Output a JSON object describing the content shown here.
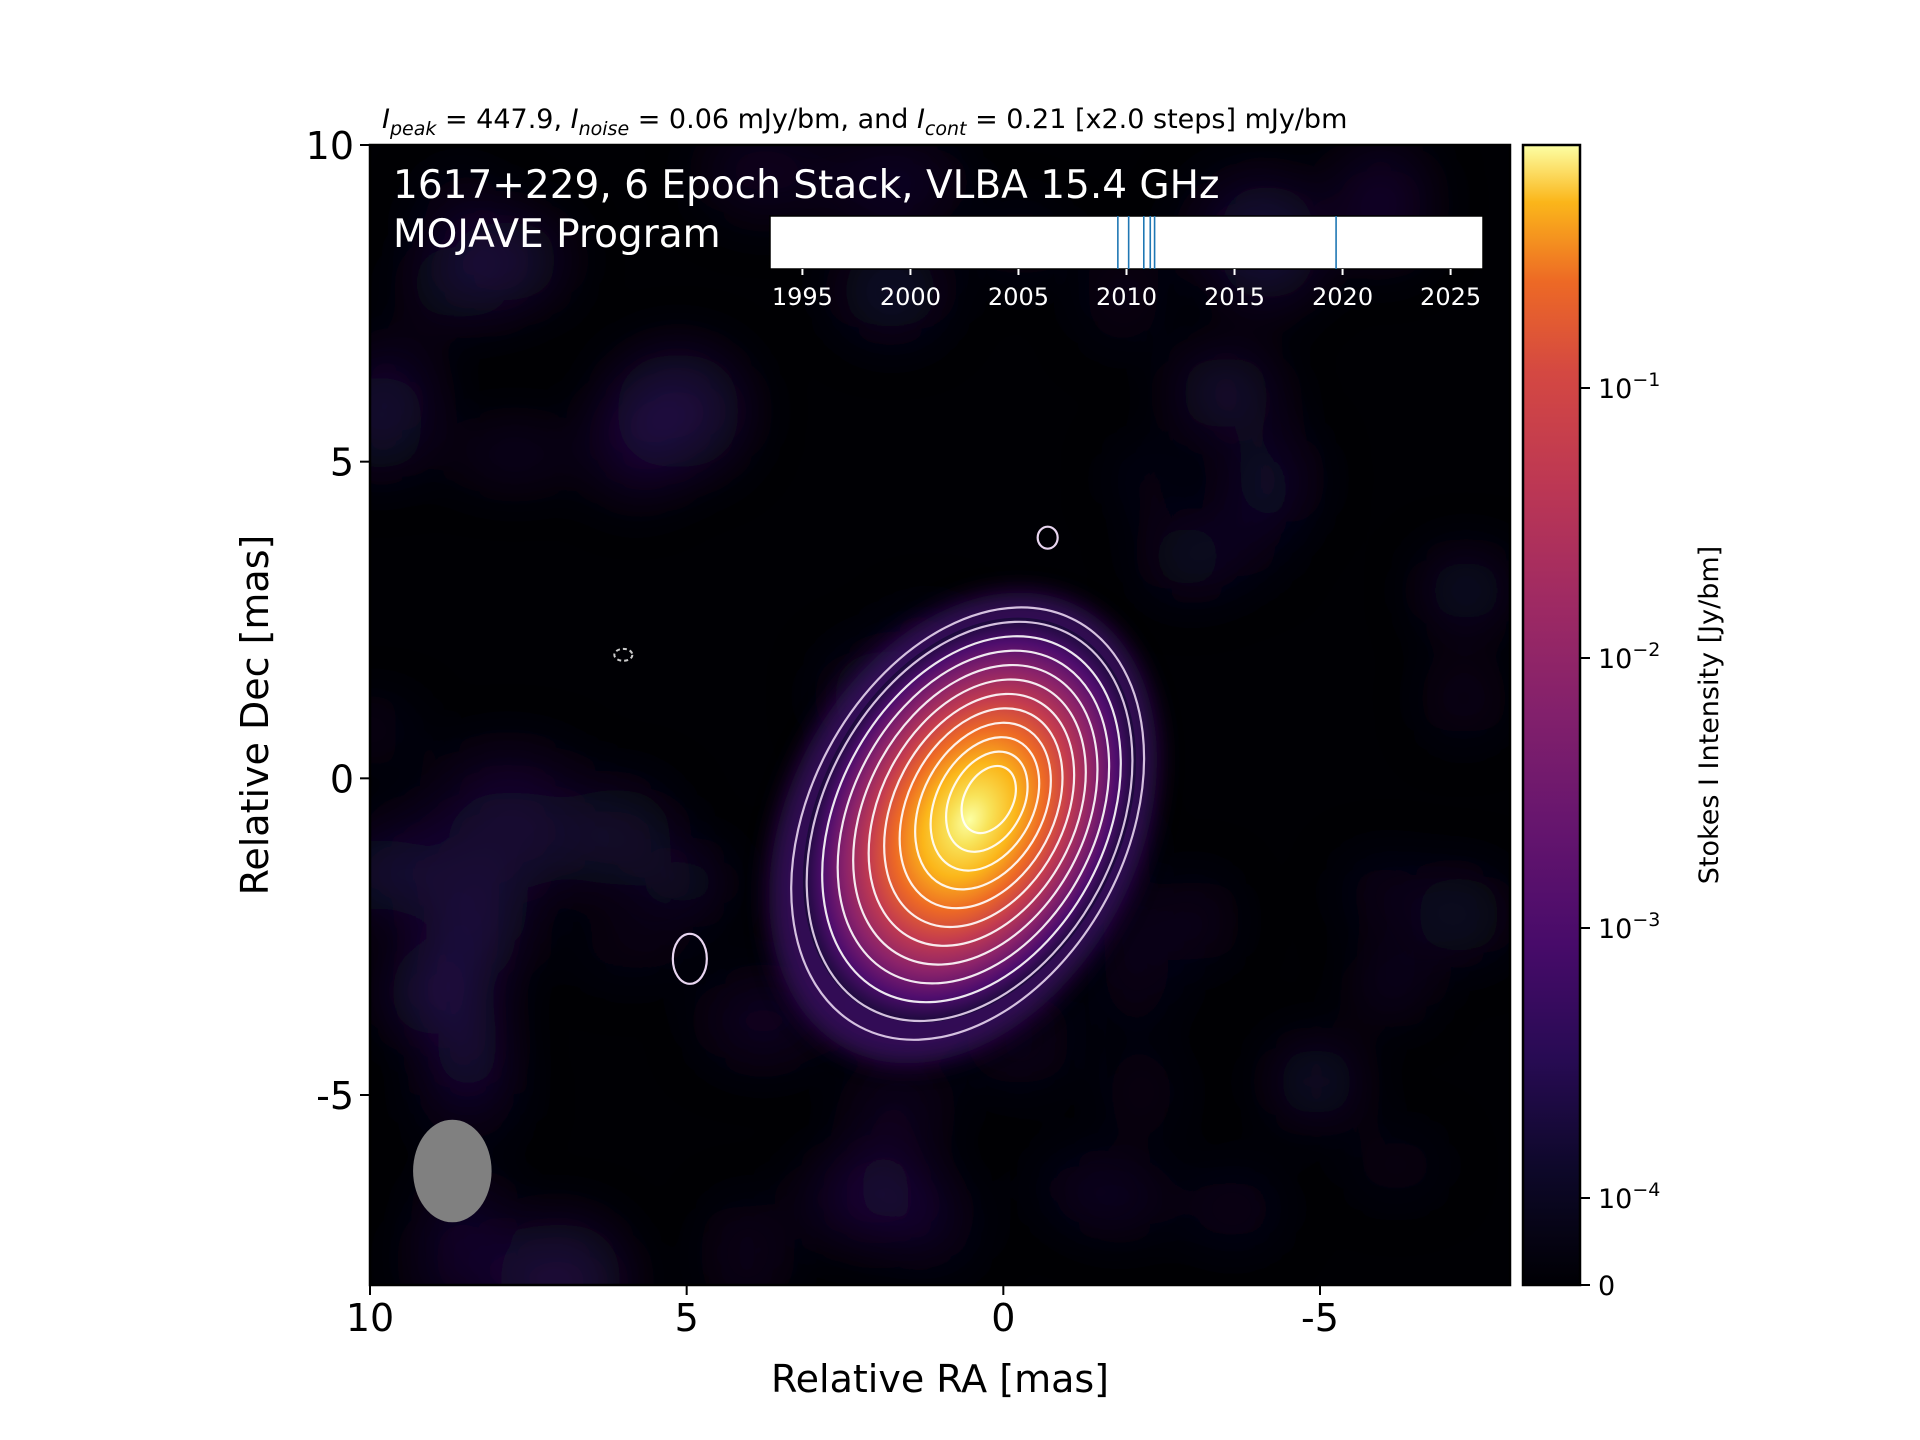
{
  "chart_data": {
    "type": "heatmap",
    "title": {
      "i_peak_sub": "peak",
      "i_peak_val": " = 447.9, ",
      "i_noise_sub": "noise",
      "i_noise_val": " = 0.06 mJy/bm, and ",
      "i_cont_sub": "cont",
      "i_cont_val": " = 0.21 [x2.0 steps] mJy/bm",
      "symbol": "I"
    },
    "annotation": {
      "line1": "1617+229, 6 Epoch Stack, VLBA 15.4 GHz",
      "line2": "MOJAVE Program"
    },
    "xlabel": "Relative RA [mas]",
    "ylabel": "Relative Dec [mas]",
    "xlim": [
      10,
      -8
    ],
    "ylim": [
      -8,
      10
    ],
    "xticks": [
      10,
      5,
      0,
      -5
    ],
    "yticks": [
      10,
      5,
      0,
      -5
    ],
    "colorbar": {
      "label": "Stokes I Intensity [Jy/bm]",
      "scale": "log",
      "ticks": [
        {
          "value": 0.1,
          "base": "10",
          "exp": "−1"
        },
        {
          "value": 0.01,
          "base": "10",
          "exp": "−2"
        },
        {
          "value": 0.001,
          "base": "10",
          "exp": "−3"
        },
        {
          "value": 0.0001,
          "base": "10",
          "exp": "−4"
        },
        {
          "value": 0,
          "base": "0",
          "exp": ""
        }
      ],
      "colormap": "inferno"
    },
    "source": {
      "ra": 0.2,
      "dec": -0.3,
      "peak_jy": 0.4479
    },
    "contour_base_mjy": 0.21,
    "contour_step": 2.0,
    "beam": {
      "ra": 8.7,
      "dec": -6.2
    },
    "epoch_timeline": {
      "xlim": [
        1993.5,
        2026.5
      ],
      "ticks": [
        1995,
        2000,
        2005,
        2010,
        2015,
        2020,
        2025
      ],
      "epochs": [
        2009.6,
        2010.1,
        2010.8,
        2011.1,
        2011.3,
        2019.7
      ],
      "line_color": "#1f77b4"
    },
    "colors": {
      "background": "#000004",
      "contour": "#ffffff",
      "beam": "#808080"
    }
  }
}
